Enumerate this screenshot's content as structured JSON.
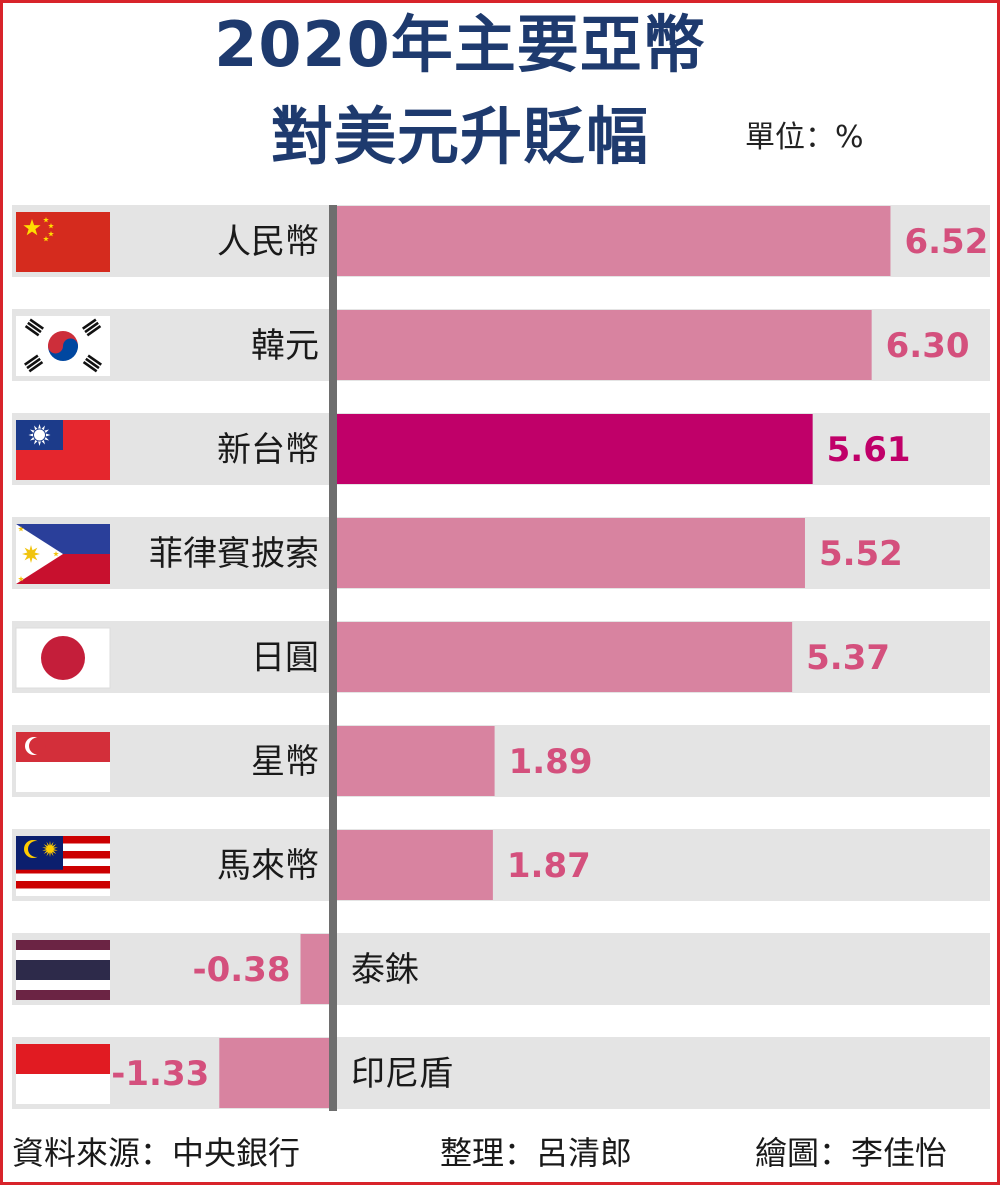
{
  "title_line1": "2020年主要亞幣",
  "title_line2": "對美元升貶幅",
  "unit_label": "單位：%",
  "footer": {
    "source": "資料來源：中央銀行",
    "editor": "整理：呂清郎",
    "illustrator": "繪圖：李佳怡"
  },
  "colors": {
    "bar": "#d883a0",
    "highlight_bar": "#c00069",
    "value_text": "#d4507d",
    "highlight_text": "#c00069",
    "row_bg": "#e4e4e4",
    "axis": "#6e6e6e"
  },
  "chart_data": {
    "type": "bar",
    "orientation": "horizontal",
    "categories": [
      "人民幣",
      "韓元",
      "新台幣",
      "菲律賓披索",
      "日圓",
      "星幣",
      "馬來幣",
      "泰銖",
      "印尼盾"
    ],
    "values": [
      6.52,
      6.3,
      5.61,
      5.52,
      5.37,
      1.89,
      1.87,
      -0.38,
      -1.33
    ],
    "value_labels": [
      "6.52",
      "6.30",
      "5.61",
      "5.52",
      "5.37",
      "1.89",
      "1.87",
      "-0.38",
      "-1.33"
    ],
    "flags": [
      "china-flag-icon",
      "south-korea-flag-icon",
      "taiwan-flag-icon",
      "philippines-flag-icon",
      "japan-flag-icon",
      "singapore-flag-icon",
      "malaysia-flag-icon",
      "thailand-flag-icon",
      "indonesia-flag-icon"
    ],
    "highlight": "新台幣",
    "grid": false,
    "legend": "none"
  }
}
